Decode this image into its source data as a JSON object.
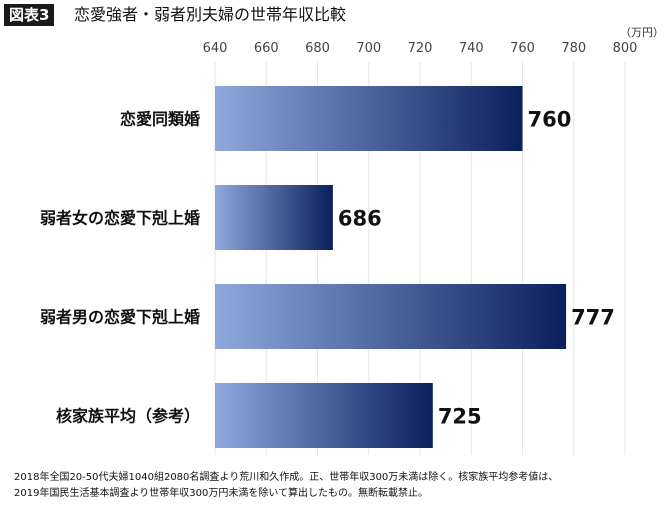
{
  "figure": {
    "badge": "図表3",
    "title": "恋愛強者・弱者別夫婦の世帯年収比較",
    "unit": "（万円）"
  },
  "chart_data": {
    "type": "bar",
    "orientation": "horizontal",
    "categories": [
      "恋愛同類婚",
      "弱者女の恋愛下剋上婚",
      "弱者男の恋愛下剋上婚",
      "核家族平均（参考）"
    ],
    "values": [
      760,
      686,
      777,
      725
    ],
    "xlim": [
      640,
      800
    ],
    "ticks": [
      640,
      660,
      680,
      700,
      720,
      740,
      760,
      780,
      800
    ],
    "grid": true,
    "bar_color_start": "#8fa8dd",
    "bar_color_end": "#0a1f5c"
  },
  "footnote": [
    "2018年全国20-50代夫婦1040組2080名調査より荒川和久作成。正、世帯年収300万未満は除く。核家族平均参考値は、",
    "2019年国民生活基本調査より世帯年収300万円未満を除いて算出したもの。無断転載禁止。"
  ]
}
